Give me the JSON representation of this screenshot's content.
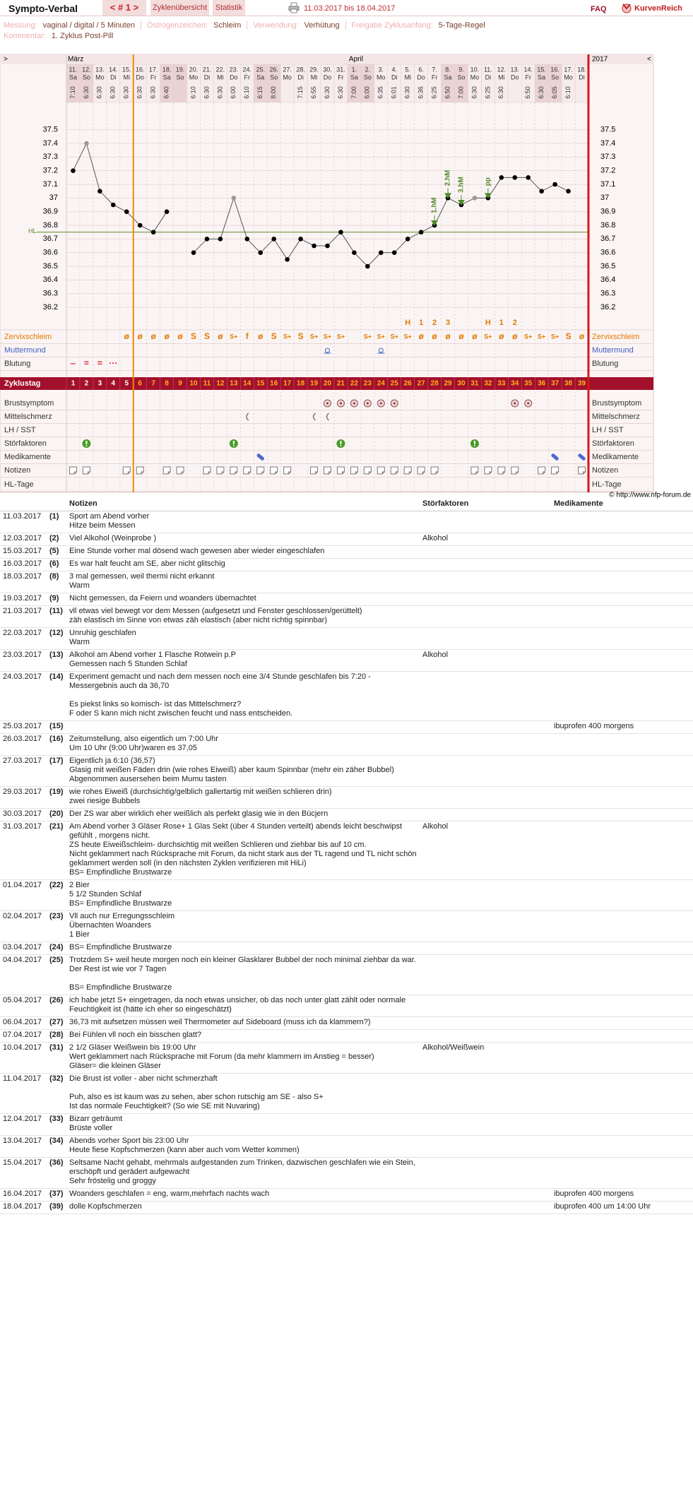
{
  "header": {
    "title": "Sympto-Verbal",
    "cycle_nav": "< # 1 >",
    "overview": "Zyklenübersicht",
    "stats": "Statistik",
    "date_range": "11.03.2017 bis 18.04.2017",
    "faq": "FAQ",
    "brand": "KurvenReich",
    "settings": [
      {
        "label": "Messung:",
        "value": "vaginal / digital / 5 Minuten"
      },
      {
        "label": "Östrogenzeichen:",
        "value": "Schleim"
      },
      {
        "label": "Verwendung:",
        "value": "Verhütung"
      },
      {
        "label": "Freigabe Zyklusanfang:",
        "value": "5-Tage-Regel"
      }
    ],
    "comment": {
      "label": "Kommentar:",
      "value": "1. Zyklus Post-Pill"
    }
  },
  "chart_data": {
    "type": "line",
    "nav_prev": ">",
    "nav_next": "<",
    "year": "2017",
    "month_labels": [
      "März",
      null,
      null,
      null,
      null,
      null,
      null,
      null,
      null,
      null,
      null,
      null,
      null,
      null,
      null,
      null,
      null,
      null,
      null,
      null,
      null,
      "April",
      null,
      null,
      null,
      null,
      null,
      null,
      null,
      null,
      null,
      null,
      null,
      null,
      null,
      null,
      null,
      null,
      null
    ],
    "categories": [
      "11.",
      "12.",
      "13.",
      "14.",
      "15.",
      "16.",
      "17.",
      "18.",
      "19.",
      "20.",
      "21.",
      "22.",
      "23.",
      "24.",
      "25.",
      "26.",
      "27.",
      "28.",
      "29.",
      "30.",
      "31.",
      "1.",
      "2.",
      "3.",
      "4.",
      "5.",
      "6.",
      "7.",
      "8.",
      "9.",
      "10.",
      "11.",
      "12.",
      "13.",
      "14.",
      "15.",
      "16.",
      "17.",
      "18."
    ],
    "weekdays": [
      "Sa",
      "So",
      "Mo",
      "Di",
      "Mi",
      "Do",
      "Fr",
      "Sa",
      "So",
      "Mo",
      "Di",
      "Mi",
      "Do",
      "Fr",
      "Sa",
      "So",
      "Mo",
      "Di",
      "Mi",
      "Do",
      "Fr",
      "Sa",
      "So",
      "Mo",
      "Di",
      "Mi",
      "Do",
      "Fr",
      "Sa",
      "So",
      "Mo",
      "Di",
      "Mi",
      "Do",
      "Fr",
      "Sa",
      "So",
      "Mo",
      "Di"
    ],
    "times": [
      "7:10",
      "6:30",
      "6:30",
      "6:30",
      "6:30",
      "6:30",
      "6:30",
      "6:40",
      null,
      "6:10",
      "6:30",
      "6:30",
      "6:00",
      "6:10",
      "6:15",
      "8:00",
      null,
      "7:15",
      "6:55",
      "6:30",
      "6:30",
      "7:00",
      "6:00",
      "6:35",
      "6:01",
      "6:30",
      "6:36",
      "6:25",
      "6:50",
      "7:00",
      "6:30",
      "6:25",
      "6:30",
      null,
      "6:50",
      "6:30",
      "6:05",
      "6:10",
      null
    ],
    "values": [
      37.2,
      37.4,
      37.05,
      36.95,
      36.9,
      36.8,
      36.75,
      36.9,
      null,
      36.6,
      36.7,
      36.7,
      37.0,
      36.7,
      36.6,
      36.7,
      36.55,
      36.7,
      36.65,
      36.65,
      36.75,
      36.6,
      36.5,
      36.6,
      36.6,
      36.7,
      36.75,
      36.8,
      37.0,
      36.95,
      37.0,
      37.0,
      37.15,
      37.15,
      37.15,
      37.05,
      37.1,
      37.05,
      null
    ],
    "point_colors": [
      "#000000",
      "#999999",
      "#000000",
      "#000000",
      "#000000",
      "#000000",
      "#000000",
      "#000000",
      null,
      "#000000",
      "#000000",
      "#000000",
      "#999999",
      "#000000",
      "#000000",
      "#000000",
      "#000000",
      "#000000",
      "#000000",
      "#000000",
      "#000000",
      "#000000",
      "#000000",
      "#000000",
      "#000000",
      "#000000",
      "#000000",
      "#000000",
      "#000000",
      "#000000",
      "#999999",
      "#000000",
      "#000000",
      "#000000",
      "#000000",
      "#000000",
      "#000000",
      "#000000",
      null
    ],
    "line_color": "#555555",
    "ylim": [
      36.05,
      37.7
    ],
    "yticks": [
      37.5,
      37.4,
      37.3,
      37.2,
      37.1,
      37,
      36.9,
      36.8,
      36.7,
      36.6,
      36.5,
      36.4,
      36.3,
      36.2
    ],
    "coverline": {
      "label": "HL",
      "value": 36.75,
      "color": "#5a8a2a"
    },
    "peak_labels": [
      null,
      null,
      null,
      null,
      null,
      null,
      null,
      null,
      null,
      null,
      null,
      null,
      null,
      null,
      null,
      null,
      null,
      null,
      null,
      null,
      null,
      null,
      null,
      null,
      null,
      null,
      null,
      "1.hM",
      "2.hM",
      "3.hM",
      null,
      "pp",
      null,
      null,
      null,
      null,
      null,
      null,
      null
    ],
    "peak_color": "#4f8a2a",
    "h_row": [
      null,
      null,
      null,
      null,
      null,
      null,
      null,
      null,
      null,
      null,
      null,
      null,
      null,
      null,
      null,
      null,
      null,
      null,
      null,
      null,
      null,
      null,
      null,
      null,
      null,
      "H",
      "1",
      "2",
      "3",
      null,
      null,
      "H",
      "1",
      "2",
      null,
      null,
      null,
      null,
      null
    ],
    "rows": [
      {
        "label": "Zervixschleim",
        "color": "#e07a00",
        "symbols": [
          null,
          null,
          null,
          null,
          "ø",
          "ø",
          "ø",
          "ø",
          "ø",
          "S",
          "S",
          "ø",
          "S+",
          "f",
          "ø",
          "S",
          "S+",
          "S",
          "S+",
          "S+",
          "S+",
          null,
          "S+",
          "S+",
          "S+",
          "S+",
          "ø",
          "ø",
          "ø",
          "ø",
          "ø",
          "S+",
          "ø",
          "ø",
          "S+",
          "S+",
          "S+",
          "S",
          "ø"
        ]
      },
      {
        "label": "Muttermund",
        "color": "#4060c0",
        "days": [
          20,
          24
        ]
      },
      {
        "label": "Blutung",
        "color": "#333333",
        "symbol_color": "#dd1a2a",
        "symbols": [
          "‒",
          "=",
          "=",
          "···",
          null,
          null,
          null,
          null,
          null,
          null,
          null,
          null,
          null,
          null,
          null,
          null,
          null,
          null,
          null,
          null,
          null,
          null,
          null,
          null,
          null,
          null,
          null,
          null,
          null,
          null,
          null,
          null,
          null,
          null,
          null,
          null,
          null,
          null,
          null
        ]
      },
      {
        "label": "Zyklustag",
        "color": "#ffffff",
        "cycle_days": [
          1,
          2,
          3,
          4,
          5,
          6,
          7,
          8,
          9,
          10,
          11,
          12,
          13,
          14,
          15,
          16,
          17,
          18,
          19,
          20,
          21,
          22,
          23,
          24,
          25,
          26,
          27,
          28,
          29,
          30,
          31,
          32,
          33,
          34,
          35,
          36,
          37,
          38,
          39
        ]
      },
      {
        "label": "Brustsymptom",
        "color": "#333333",
        "days": [
          20,
          21,
          22,
          23,
          24,
          25,
          34,
          35
        ]
      },
      {
        "label": "Mittelschmerz",
        "color": "#333333",
        "days": [
          14,
          19,
          20
        ]
      },
      {
        "label": "LH / SST",
        "color": "#333333",
        "days": []
      },
      {
        "label": "Störfaktoren",
        "color": "#333333",
        "days": [
          2,
          13,
          21,
          31
        ]
      },
      {
        "label": "Medikamente",
        "color": "#333333",
        "days": [
          15,
          37,
          39
        ]
      },
      {
        "label": "Notizen",
        "color": "#333333",
        "days": [
          1,
          2,
          5,
          6,
          8,
          9,
          11,
          12,
          13,
          14,
          15,
          16,
          17,
          19,
          20,
          21,
          22,
          23,
          24,
          25,
          26,
          27,
          28,
          31,
          32,
          33,
          34,
          36,
          37,
          39
        ]
      },
      {
        "label": "HL-Tage",
        "color": "#333333",
        "days": []
      }
    ],
    "copyright": "© http://www.nfp-forum.de"
  },
  "notes": {
    "headers": {
      "notes": "Notizen",
      "stoer": "Störfaktoren",
      "med": "Medikamente"
    },
    "rows": [
      {
        "date": "11.03.2017",
        "num": "(1)",
        "text": "Sport am Abend vorher\nHitze beim Messen",
        "stoer": null,
        "med": null
      },
      {
        "date": "12.03.2017",
        "num": "(2)",
        "text": "Viel Alkohol (Weinprobe )",
        "stoer": "Alkohol",
        "med": null
      },
      {
        "date": "15.03.2017",
        "num": "(5)",
        "text": "Eine Stunde vorher mal dösend wach gewesen aber wieder eingeschlafen",
        "stoer": null,
        "med": null
      },
      {
        "date": "16.03.2017",
        "num": "(6)",
        "text": "Es war halt feucht am SE, aber nicht glitschig",
        "stoer": null,
        "med": null
      },
      {
        "date": "18.03.2017",
        "num": "(8)",
        "text": "3 mal gemessen, weil thermi nicht erkannt\nWarm",
        "stoer": null,
        "med": null
      },
      {
        "date": "19.03.2017",
        "num": "(9)",
        "text": "Nicht gemessen, da Feiern und woanders übernachtet",
        "stoer": null,
        "med": null
      },
      {
        "date": "21.03.2017",
        "num": "(11)",
        "text": "vll etwas viel bewegt vor dem Messen (aufgesetzt und Fenster geschlossen/gerüttelt)\nzäh elastisch im Sinne von etwas zäh elastisch (aber nicht richtig spinnbar)",
        "stoer": null,
        "med": null
      },
      {
        "date": "22.03.2017",
        "num": "(12)",
        "text": "Unruhig geschlafen\nWarm",
        "stoer": null,
        "med": null
      },
      {
        "date": "23.03.2017",
        "num": "(13)",
        "text": "Alkohol am Abend vorher 1 Flasche Rotwein p.P\nGemessen nach 5 Stunden Schlaf",
        "stoer": "Alkohol",
        "med": null
      },
      {
        "date": "24.03.2017",
        "num": "(14)",
        "text": "Experiment gemacht und nach dem messen noch eine 3/4 Stunde geschlafen bis 7:20 - Messergebnis auch da 36,70\n\nEs piekst links so komisch- ist das Mittelschmerz?\nF oder S kann mich nicht zwischen feucht und nass entscheiden.",
        "stoer": null,
        "med": null
      },
      {
        "date": "25.03.2017",
        "num": "(15)",
        "text": null,
        "stoer": null,
        "med": "ibuprofen 400 morgens"
      },
      {
        "date": "26.03.2017",
        "num": "(16)",
        "text": "Zeitumstellung, also eigentlich um 7:00 Uhr\nUm 10 Uhr  (9:00 Uhr)waren es 37,05",
        "stoer": null,
        "med": null
      },
      {
        "date": "27.03.2017",
        "num": "(17)",
        "text": "Eigentlich ja 6:10 (36,57)\nGlasig mit weißen Fäden drin (wie rohes Eiweiß) aber kaum Spinnbar  (mehr ein zäher Bubbel)\nAbgenommen ausersehen beim Mumu tasten",
        "stoer": null,
        "med": null
      },
      {
        "date": "29.03.2017",
        "num": "(19)",
        "text": "wie rohes Eiweiß (durchsichtig/gelblich gallertartig mit weißen schlieren drin)\nzwei riesige Bubbels",
        "stoer": null,
        "med": null
      },
      {
        "date": "30.03.2017",
        "num": "(20)",
        "text": "Der ZS war aber wirklich eher weißlich als perfekt glasig wie in den Bücjern",
        "stoer": null,
        "med": null
      },
      {
        "date": "31.03.2017",
        "num": "(21)",
        "text": "Am Abend vorher 3 Gläser Rose+ 1 Glas Sekt (über 4 Stunden verteilt) abends leicht beschwipst gefühlt , morgens nicht.\nZS heute Eiweißschleim- durchsichtig mit weißen Schlieren und ziehbar bis auf 10 cm.\nNicht geklammert nach Rücksprache mit Forum, da nicht stark aus der TL ragend und TL nicht schön geklammert werden soll (in den nächsten Zyklen verifizieren mit HiLi)\nBS= Empfindliche Brustwarze",
        "stoer": "Alkohol",
        "med": null
      },
      {
        "date": "01.04.2017",
        "num": "(22)",
        "text": "2  Bier\n5 1/2 Stunden Schlaf\nBS= Empfindliche Brustwarze",
        "stoer": null,
        "med": null
      },
      {
        "date": "02.04.2017",
        "num": "(23)",
        "text": "Vll auch nur Erregungsschleim\nÜbernachten Woanders\n1 Bier",
        "stoer": null,
        "med": null
      },
      {
        "date": "03.04.2017",
        "num": "(24)",
        "text": "BS= Empfindliche Brustwarze",
        "stoer": null,
        "med": null
      },
      {
        "date": "04.04.2017",
        "num": "(25)",
        "text": "Trotzdem S+ weil heute morgen noch ein kleiner Glasklarer Bubbel der noch minimal ziehbar da war. Der Rest ist wie vor 7 Tagen\n\nBS= Empfindliche Brustwarze",
        "stoer": null,
        "med": null
      },
      {
        "date": "05.04.2017",
        "num": "(26)",
        "text": "ich habe jetzt S+ eingetragen, da noch etwas unsicher, ob das noch unter glatt zählt oder normale Feuchtigkeit ist (hätte ich eher so eingeschätzt)",
        "stoer": null,
        "med": null
      },
      {
        "date": "06.04.2017",
        "num": "(27)",
        "text": "36,73 mit aufsetzen müssen weil Thermometer auf Sideboard (muss ich da klammern?)",
        "stoer": null,
        "med": null
      },
      {
        "date": "07.04.2017",
        "num": "(28)",
        "text": "Bei Fühlen vll noch ein bisschen glatt?",
        "stoer": null,
        "med": null
      },
      {
        "date": "10.04.2017",
        "num": "(31)",
        "text": "2 1/2 Gläser Weißwein bis 19:00 Uhr\nWert geklammert nach Rücksprache mit Forum (da mehr klammern im Anstieg = besser)\nGläser= die kleinen Gläser",
        "stoer": "Alkohol/Weißwein",
        "med": null
      },
      {
        "date": "11.04.2017",
        "num": "(32)",
        "text": "Die Brust ist voller - aber nicht schmerzhaft\n\nPuh, also es ist kaum was zu sehen, aber schon rutschig am SE - also S+\nIst das normale Feuchtigkeit? (So wie SE mit Nuvaring)",
        "stoer": null,
        "med": null
      },
      {
        "date": "12.04.2017",
        "num": "(33)",
        "text": "Bizarr geträumt\nBrüste voller",
        "stoer": null,
        "med": null
      },
      {
        "date": "13.04.2017",
        "num": "(34)",
        "text": "Abends vorher Sport bis 23:00 Uhr\nHeute fiese Kopfschmerzen (kann aber auch vom Wetter kommen)",
        "stoer": null,
        "med": null
      },
      {
        "date": "15.04.2017",
        "num": "(36)",
        "text": "Seltsame Nacht gehabt, mehrmals aufgestanden zum Trinken, dazwischen geschlafen wie ein Stein, erschöpft und gerädert aufgewacht\nSehr fröstelig und groggy",
        "stoer": null,
        "med": null
      },
      {
        "date": "16.04.2017",
        "num": "(37)",
        "text": "Woanders geschlafen = eng, warm,mehrfach nachts wach",
        "stoer": null,
        "med": "ibuprofen 400 morgens"
      },
      {
        "date": "18.04.2017",
        "num": "(39)",
        "text": "dolle Kopfschmerzen",
        "stoer": null,
        "med": "ibuprofen 400 um 14:00 Uhr"
      }
    ]
  }
}
